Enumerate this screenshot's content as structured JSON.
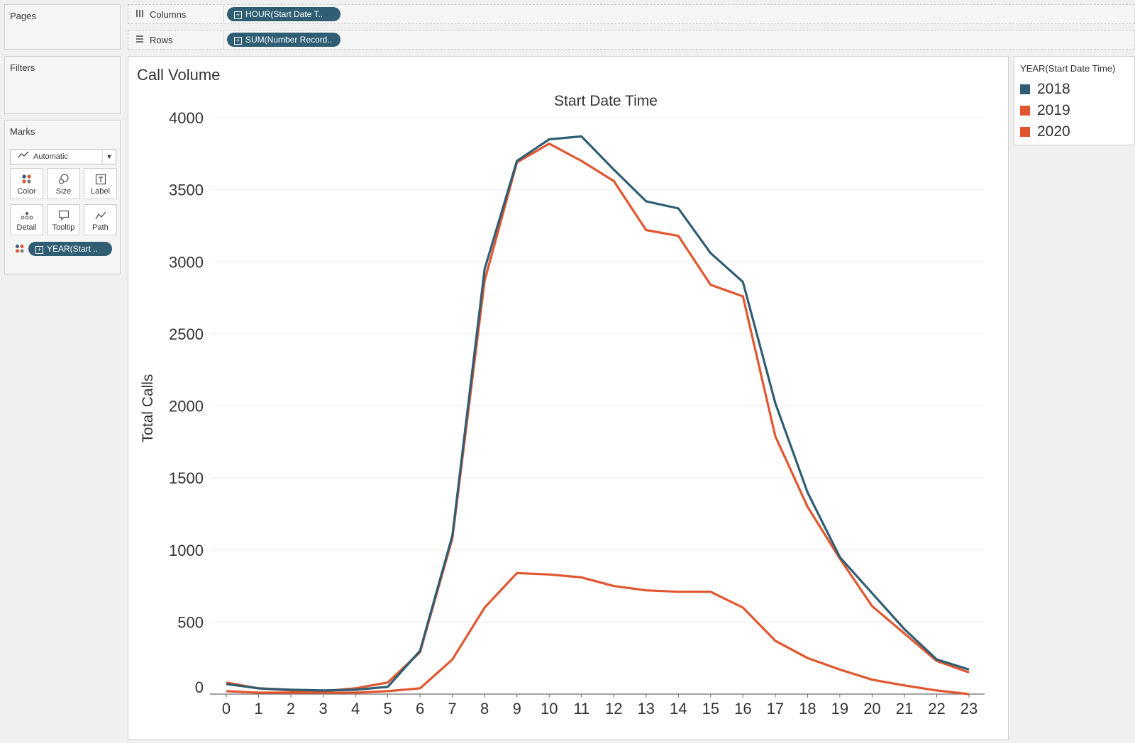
{
  "sidebar": {
    "pages": {
      "title": "Pages"
    },
    "filters": {
      "title": "Filters"
    },
    "marks": {
      "title": "Marks",
      "mark_type": "Automatic",
      "cards": [
        {
          "label": "Color",
          "icon": "color-dots-icon"
        },
        {
          "label": "Size",
          "icon": "size-icon"
        },
        {
          "label": "Label",
          "icon": "text-label-icon"
        },
        {
          "label": "Detail",
          "icon": "detail-dots-icon"
        },
        {
          "label": "Tooltip",
          "icon": "tooltip-bubble-icon"
        },
        {
          "label": "Path",
          "icon": "path-line-icon"
        }
      ],
      "color_pill": "YEAR(Start .."
    }
  },
  "shelves": {
    "columns": {
      "label": "Columns",
      "pill": "HOUR(Start Date T.."
    },
    "rows": {
      "label": "Rows",
      "pill": "SUM(Number Record.."
    }
  },
  "legend": {
    "title": "YEAR(Start Date Time)",
    "items": [
      {
        "label": "2018",
        "color": "#2f5d73"
      },
      {
        "label": "2019",
        "color": "#e1562f"
      },
      {
        "label": "2020",
        "color": "#e1562f"
      }
    ]
  },
  "chart_data": {
    "type": "line",
    "title": "Call Volume",
    "subtitle": "Start Date Time",
    "xlabel": "",
    "ylabel": "Total Calls",
    "x": [
      0,
      1,
      2,
      3,
      4,
      5,
      6,
      7,
      8,
      9,
      10,
      11,
      12,
      13,
      14,
      15,
      16,
      17,
      18,
      19,
      20,
      21,
      22,
      23
    ],
    "ylim": [
      0,
      4000
    ],
    "yticks": [
      0,
      500,
      1000,
      1500,
      2000,
      2500,
      3000,
      3500,
      4000
    ],
    "grid": true,
    "legend_position": "right",
    "series": [
      {
        "name": "2018",
        "color": "#2f5d73",
        "values": [
          70,
          40,
          30,
          25,
          30,
          50,
          300,
          1100,
          2950,
          3700,
          3850,
          3870,
          3640,
          3420,
          3370,
          3060,
          2860,
          2020,
          1400,
          950,
          700,
          450,
          240,
          170
        ]
      },
      {
        "name": "2019",
        "color": "#e1562f",
        "values": [
          80,
          40,
          25,
          20,
          40,
          80,
          290,
          1080,
          2870,
          3690,
          3820,
          3700,
          3560,
          3220,
          3180,
          2840,
          2760,
          1790,
          1300,
          940,
          610,
          420,
          230,
          150
        ]
      },
      {
        "name": "2020",
        "color": "#e1562f",
        "values": [
          20,
          10,
          10,
          10,
          10,
          20,
          40,
          240,
          600,
          840,
          830,
          810,
          750,
          720,
          710,
          710,
          600,
          370,
          250,
          170,
          100,
          60,
          25,
          0
        ]
      }
    ]
  }
}
